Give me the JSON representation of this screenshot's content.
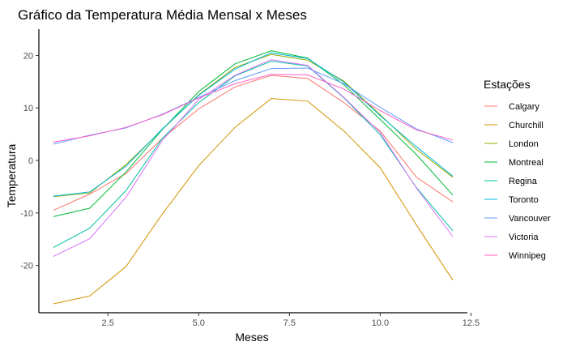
{
  "chart_data": {
    "type": "line",
    "title": "Gráfico da Temperatura Média Mensal x Meses",
    "xlabel": "Meses",
    "ylabel": "Temperatura",
    "xlim": [
      0.6,
      12.4
    ],
    "ylim": [
      -29,
      25
    ],
    "x_ticks": [
      2.5,
      5.0,
      7.5,
      10.0,
      12.5
    ],
    "x_tick_labels": [
      "2.5",
      "5.0",
      "7.5",
      "10.0",
      "12.5"
    ],
    "y_ticks": [
      -20,
      -10,
      0,
      10,
      20
    ],
    "y_tick_labels": [
      "-20",
      "-10",
      "0",
      "10",
      "20"
    ],
    "grid": false,
    "legend_title": "Estações",
    "legend_position": "right",
    "x": [
      1,
      2,
      3,
      4,
      5,
      6,
      7,
      8,
      9,
      10,
      11,
      12
    ],
    "series": [
      {
        "name": "Calgary",
        "color": "#F8766D",
        "values": [
          -9.5,
          -6.4,
          -2.5,
          4.2,
          9.8,
          14.0,
          16.2,
          15.6,
          11.0,
          5.6,
          -3.2,
          -7.9
        ]
      },
      {
        "name": "Churchill",
        "color": "#D39200",
        "values": [
          -27.3,
          -25.8,
          -20.2,
          -10.2,
          -1.0,
          6.3,
          11.8,
          11.3,
          5.6,
          -1.4,
          -12.3,
          -22.8
        ]
      },
      {
        "name": "London",
        "color": "#93AA00",
        "values": [
          -6.9,
          -6.2,
          -0.8,
          5.9,
          12.5,
          17.7,
          20.2,
          19.1,
          15.1,
          8.7,
          2.1,
          -3.2
        ]
      },
      {
        "name": "Montreal",
        "color": "#00BA38",
        "values": [
          -10.7,
          -9.1,
          -2.2,
          5.9,
          13.1,
          18.4,
          20.9,
          19.5,
          14.4,
          7.8,
          1.1,
          -6.6
        ]
      },
      {
        "name": "Regina",
        "color": "#00C19F",
        "values": [
          -16.6,
          -12.9,
          -5.7,
          4.2,
          11.0,
          16.1,
          18.9,
          18.0,
          11.9,
          4.9,
          -5.2,
          -13.4
        ]
      },
      {
        "name": "Toronto",
        "color": "#00B9E3",
        "values": [
          -6.8,
          -6.0,
          -1.1,
          6.0,
          12.4,
          17.4,
          20.5,
          19.4,
          14.9,
          8.5,
          2.6,
          -3.0
        ]
      },
      {
        "name": "Vancouver",
        "color": "#619CFF",
        "values": [
          3.1,
          4.8,
          6.2,
          8.8,
          12.0,
          15.2,
          17.5,
          17.6,
          14.6,
          10.1,
          6.0,
          3.4
        ]
      },
      {
        "name": "Victoria",
        "color": "#DB72FB",
        "values": [
          -18.3,
          -14.9,
          -7.0,
          3.8,
          11.6,
          16.2,
          19.2,
          18.1,
          12.0,
          5.3,
          -5.3,
          -14.5
        ]
      },
      {
        "name": "Winnipeg",
        "color": "#FF61C3",
        "values": [
          3.5,
          4.7,
          6.3,
          8.7,
          11.9,
          14.6,
          16.4,
          16.3,
          13.6,
          9.5,
          5.8,
          3.9
        ]
      }
    ]
  }
}
